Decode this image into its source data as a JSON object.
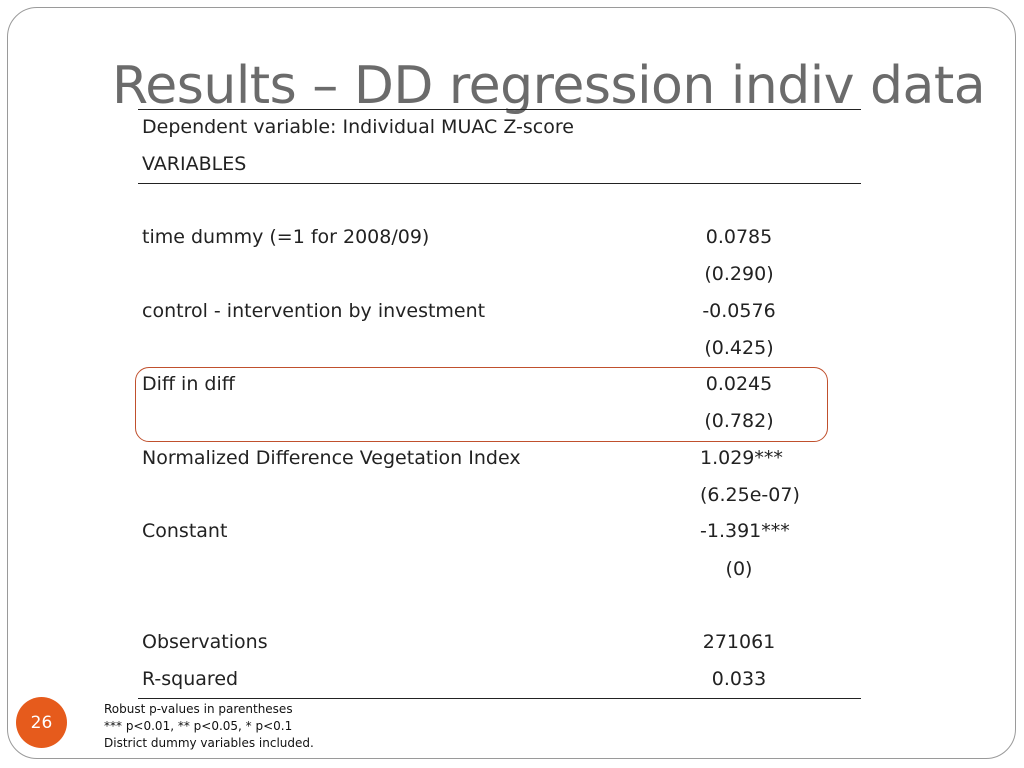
{
  "slide": {
    "title": "Results – DD regression indiv data",
    "number": "26",
    "accent_color": "#e65b1c",
    "highlight_color": "#c0502d"
  },
  "table": {
    "dependent_variable": "Dependent variable: Individual MUAC Z-score",
    "variables_header": "VARIABLES",
    "rows": [
      {
        "label": "time dummy  (=1 for 2008/09)",
        "coef": "0.0785",
        "pval": "(0.290)"
      },
      {
        "label": "control - intervention by investment",
        "coef": "-0.0576",
        "pval": "(0.425)"
      },
      {
        "label": "Diff in diff",
        "coef": "0.0245",
        "pval": "(0.782)"
      },
      {
        "label": "Normalized Difference Vegetation Index",
        "coef": "1.029***",
        "pval": "(6.25e-07)"
      },
      {
        "label": "Constant",
        "coef": "-1.391***",
        "pval": "(0)"
      }
    ],
    "observations_label": "Observations",
    "observations_value": "271061",
    "rsquared_label": "R-squared",
    "rsquared_value": "0.033"
  },
  "notes": [
    "Robust p-values in parentheses",
    "*** p<0.01, ** p<0.05, * p<0.1",
    "District dummy variables included."
  ]
}
